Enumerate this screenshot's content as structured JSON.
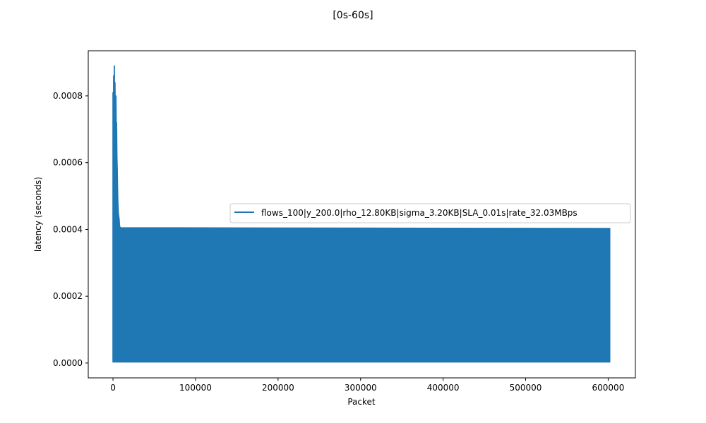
{
  "chart_data": {
    "type": "line",
    "title": "[0s-60s]",
    "xlabel": "Packet",
    "ylabel": "latency (seconds)",
    "xlim": [
      -30000,
      633000
    ],
    "ylim": [
      -4.45e-05,
      0.000935
    ],
    "xticks": [
      0,
      100000,
      200000,
      300000,
      400000,
      500000,
      600000
    ],
    "xtick_labels": [
      "0",
      "100000",
      "200000",
      "300000",
      "400000",
      "500000",
      "600000"
    ],
    "yticks": [
      0.0,
      0.0002,
      0.0004,
      0.0006,
      0.0008
    ],
    "ytick_labels": [
      "0.0000",
      "0.0002",
      "0.0004",
      "0.0006",
      "0.0008"
    ],
    "grid": false,
    "legend_placement": "center-right",
    "series": [
      {
        "name": "flows_100|y_200.0|rho_12.80KB|sigma_3.20KB|SLA_0.01s|rate_32.03MBps",
        "color": "#1f77b4",
        "band_min": 3e-06,
        "band_max": 0.000403,
        "x_end": 602000,
        "spike_envelope": [
          [
            0,
            0.00081
          ],
          [
            400,
            0.00074
          ],
          [
            800,
            0.00086
          ],
          [
            1200,
            0.00082
          ],
          [
            1600,
            0.00089
          ],
          [
            2000,
            0.00078
          ],
          [
            2400,
            0.00084
          ],
          [
            2800,
            0.00076
          ],
          [
            3200,
            0.00075
          ],
          [
            3600,
            0.0008
          ],
          [
            4000,
            0.0007
          ],
          [
            4400,
            0.00072
          ],
          [
            4800,
            0.00062
          ],
          [
            5200,
            0.00058
          ],
          [
            5600,
            0.00052
          ],
          [
            6000,
            0.00048
          ],
          [
            6500,
            0.00045
          ],
          [
            7000,
            0.00044
          ],
          [
            7500,
            0.00043
          ],
          [
            8000,
            0.00041
          ],
          [
            9000,
            0.000405
          ]
        ]
      }
    ]
  }
}
